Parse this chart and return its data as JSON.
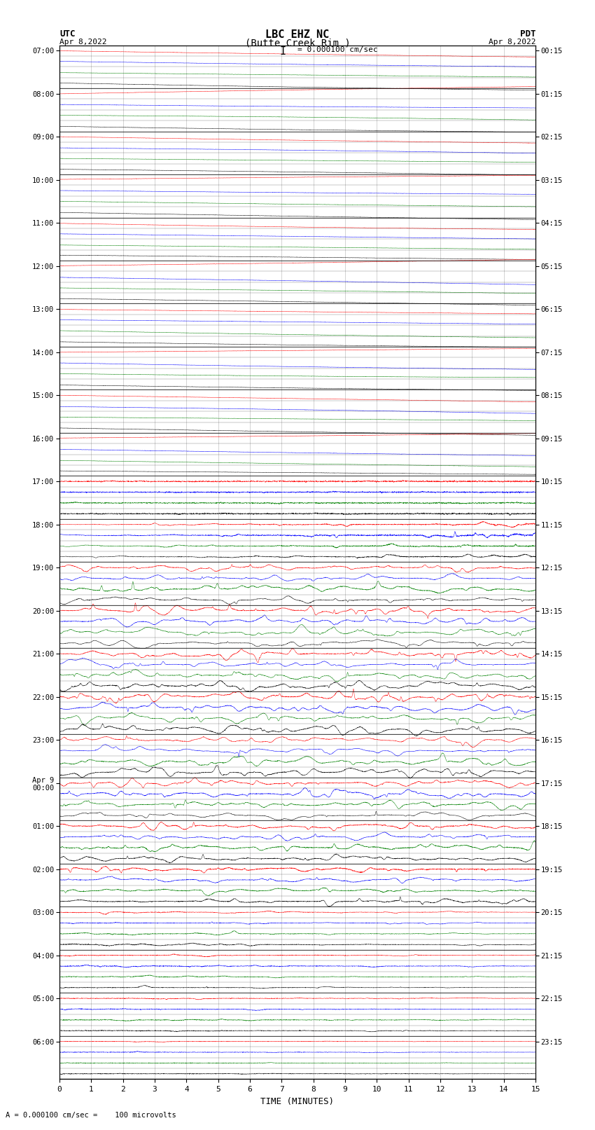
{
  "title_line1": "LBC EHZ NC",
  "title_line2": "(Butte Creek Rim )",
  "scale_text": "I = 0.000100 cm/sec",
  "utc_label": "UTC",
  "utc_date": "Apr 8,2022",
  "pdt_label": "PDT",
  "pdt_date": "Apr 8,2022",
  "xlabel": "TIME (MINUTES)",
  "footnote": "A = 0.000100 cm/sec =    100 microvolts",
  "xlim": [
    0,
    15
  ],
  "trace_colors_cycle": [
    "red",
    "blue",
    "green",
    "black"
  ],
  "utc_times": [
    "07:00",
    "08:00",
    "09:00",
    "10:00",
    "11:00",
    "12:00",
    "13:00",
    "14:00",
    "15:00",
    "16:00",
    "17:00",
    "18:00",
    "19:00",
    "20:00",
    "21:00",
    "22:00",
    "23:00",
    "Apr 9\n00:00",
    "01:00",
    "02:00",
    "03:00",
    "04:00",
    "05:00",
    "06:00"
  ],
  "pdt_times": [
    "00:15",
    "01:15",
    "02:15",
    "03:15",
    "04:15",
    "05:15",
    "06:15",
    "07:15",
    "08:15",
    "09:15",
    "10:15",
    "11:15",
    "12:15",
    "13:15",
    "14:15",
    "15:15",
    "16:15",
    "17:15",
    "18:15",
    "19:15",
    "20:15",
    "21:15",
    "22:15",
    "23:15"
  ],
  "n_rows": 96,
  "n_hours": 24,
  "figsize": [
    8.5,
    16.13
  ],
  "dpi": 100
}
